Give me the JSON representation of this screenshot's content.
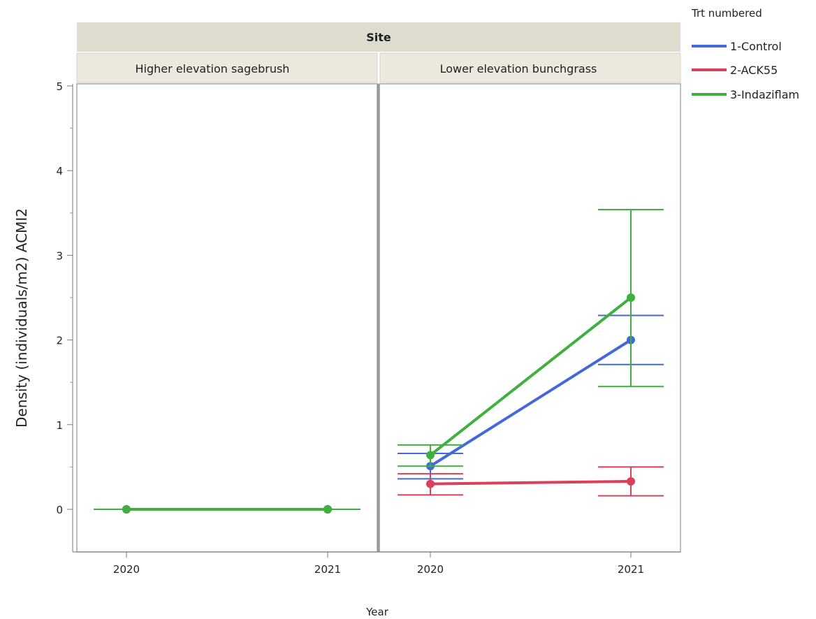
{
  "chart_data": {
    "type": "line",
    "facet_title": "Site",
    "panels": [
      {
        "title": "Higher elevation sagebrush",
        "categories": [
          "2020",
          "2021"
        ],
        "series": [
          {
            "name": "1-Control",
            "values": [
              0,
              0
            ],
            "err_low": [
              0,
              0
            ],
            "err_high": [
              0,
              0
            ]
          },
          {
            "name": "2-ACK55",
            "values": [
              0,
              0
            ],
            "err_low": [
              0,
              0
            ],
            "err_high": [
              0,
              0
            ]
          },
          {
            "name": "3-Indaziflam",
            "values": [
              0,
              0
            ],
            "err_low": [
              0,
              0
            ],
            "err_high": [
              0,
              0
            ]
          }
        ]
      },
      {
        "title": "Lower elevation bunchgrass",
        "categories": [
          "2020",
          "2021"
        ],
        "series": [
          {
            "name": "1-Control",
            "values": [
              0.51,
              2.0
            ],
            "err_low": [
              0.36,
              1.71
            ],
            "err_high": [
              0.66,
              2.29
            ]
          },
          {
            "name": "2-ACK55",
            "values": [
              0.3,
              0.33
            ],
            "err_low": [
              0.17,
              0.16
            ],
            "err_high": [
              0.42,
              0.5
            ]
          },
          {
            "name": "3-Indaziflam",
            "values": [
              0.64,
              2.5
            ],
            "err_low": [
              0.51,
              1.45
            ],
            "err_high": [
              0.76,
              3.54
            ]
          }
        ]
      }
    ],
    "ylabel": "Density (individuals/m2) ACMI2",
    "xlabel": "Year",
    "ylim": [
      -0.5,
      5
    ],
    "yticks": [
      "0",
      "1",
      "2",
      "3",
      "4",
      "5"
    ],
    "legend": {
      "title": "Trt numbered",
      "placement": "top-right",
      "items": [
        "1-Control",
        "2-ACK55",
        "3-Indaziflam"
      ]
    },
    "colors": {
      "1-Control": "#4169d8",
      "2-ACK55": "#d9415a",
      "3-Indaziflam": "#3faf3f"
    },
    "grid": false
  }
}
